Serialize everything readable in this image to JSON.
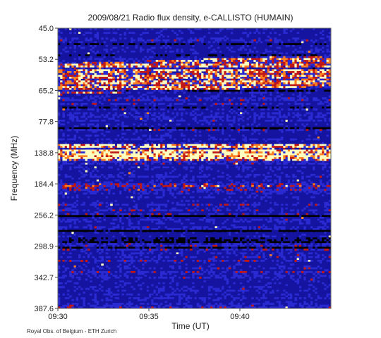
{
  "chart_data": {
    "type": "heatmap",
    "title": "2009/08/21  Radio flux density, e-CALLISTO (HUMAIN)",
    "xlabel": "Time (UT)",
    "ylabel": "Frequency (MHz)",
    "x_ticks": [
      "09:30",
      "09:35",
      "09:40"
    ],
    "y_ticks": [
      "45.0",
      "53.2",
      "65.2",
      "77.8",
      "138.8",
      "184.4",
      "256.2",
      "298.9",
      "342.7",
      "387.6"
    ],
    "xlim": [
      "09:30",
      "09:45"
    ],
    "ylim": [
      45.0,
      387.6
    ],
    "colormap": [
      "#000000",
      "#1414a0",
      "#2a2ad2",
      "#c01818",
      "#ff8020",
      "#ffffc0"
    ],
    "features": [
      {
        "time_start": "09:30",
        "time_end": "09:45",
        "freq_start": 53.2,
        "freq_end": 65.2,
        "intensity": "high",
        "shape": "drifting bands"
      },
      {
        "time_start": "09:30",
        "time_end": "09:45",
        "freq_start": 120.0,
        "freq_end": 150.0,
        "intensity": "very high",
        "shape": "bright band"
      },
      {
        "time_start": "09:30",
        "time_end": "09:45",
        "freq_start": 184.4,
        "freq_end": 200.0,
        "intensity": "medium",
        "shape": "band"
      }
    ]
  },
  "credit": "Royal Obs. of Belgium - ETH Zurich"
}
